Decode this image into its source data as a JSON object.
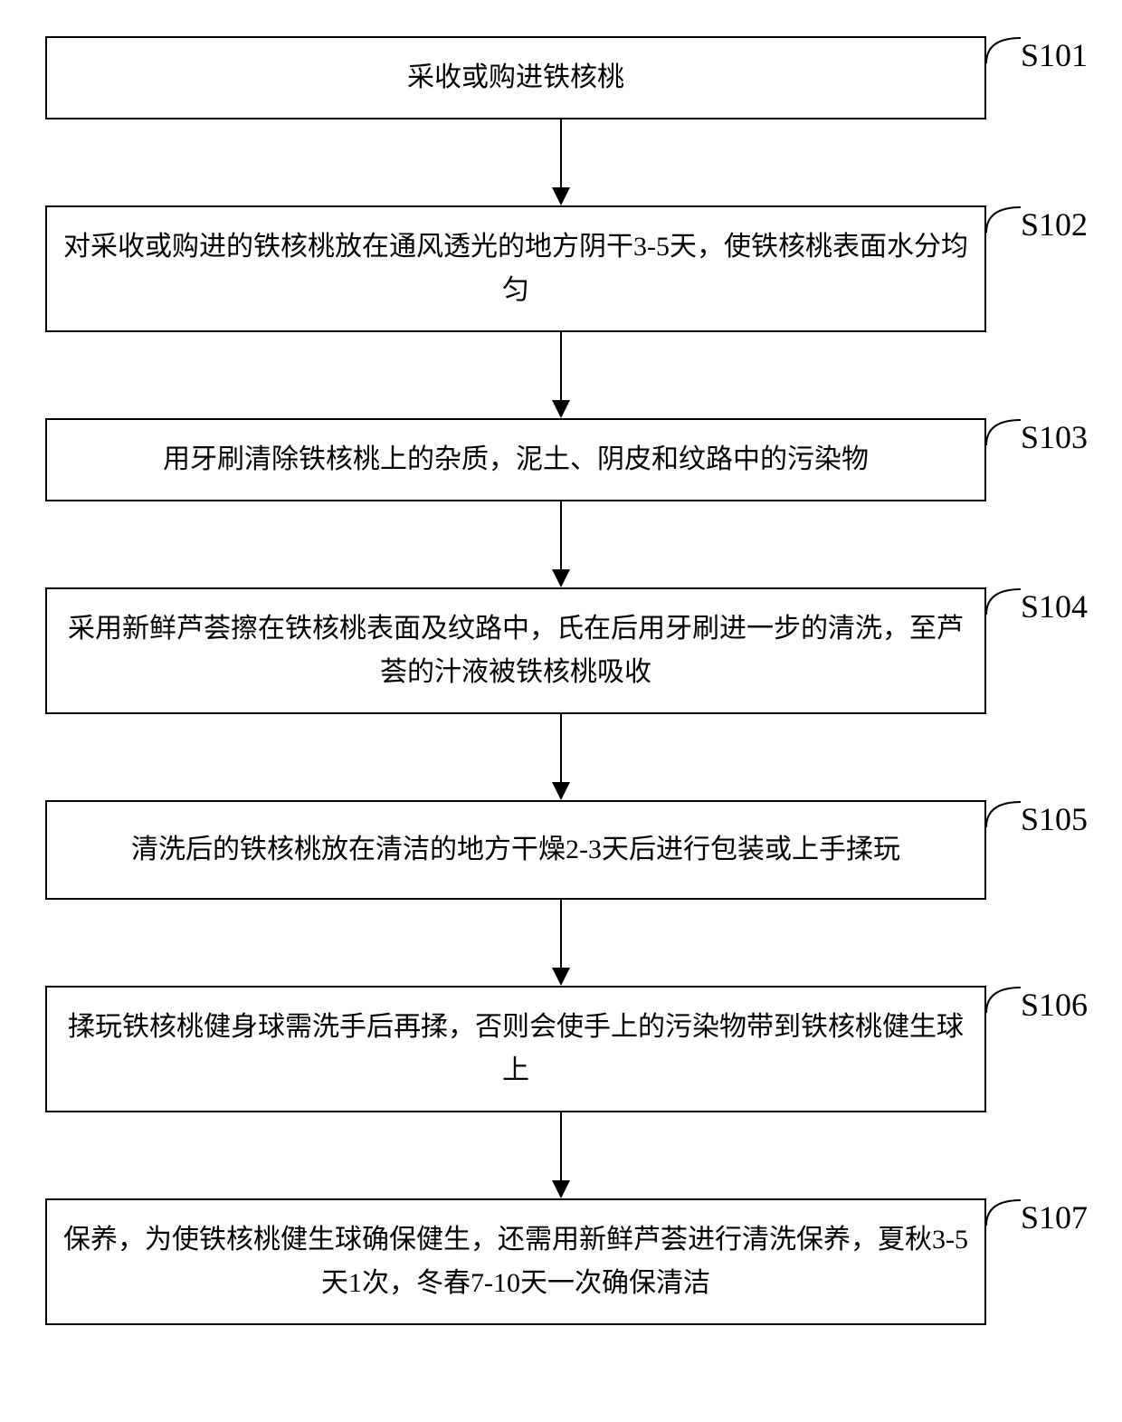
{
  "flowchart": {
    "type": "flowchart",
    "background_color": "#ffffff",
    "border_color": "#000000",
    "text_color": "#000000",
    "node_border_width": 2,
    "font_size": 30,
    "label_font_size": 36,
    "arrow_style": "solid",
    "arrow_head": "filled-triangle",
    "steps": [
      {
        "id": "S101",
        "text": "采收或购进铁核桃",
        "lines": 1
      },
      {
        "id": "S102",
        "text": "对采收或购进的铁核桃放在通风透光的地方阴干3-5天，使铁核桃表面水分均匀",
        "lines": 2
      },
      {
        "id": "S103",
        "text": "用牙刷清除铁核桃上的杂质，泥土、阴皮和纹路中的污染物",
        "lines": 1
      },
      {
        "id": "S104",
        "text": "采用新鲜芦荟擦在铁核桃表面及纹路中，氏在后用牙刷进一步的清洗，至芦荟的汁液被铁核桃吸收",
        "lines": 2
      },
      {
        "id": "S105",
        "text": "清洗后的铁核桃放在清洁的地方干燥2-3天后进行包装或上手揉玩",
        "lines": 2
      },
      {
        "id": "S106",
        "text": "揉玩铁核桃健身球需洗手后再揉，否则会使手上的污染物带到铁核桃健生球上",
        "lines": 2
      },
      {
        "id": "S107",
        "text": "保养，为使铁核桃健生球确保健生，还需用新鲜芦荟进行清洗保养，夏秋3-5天1次，冬春7-10天一次确保清洁",
        "lines": 2
      }
    ]
  }
}
